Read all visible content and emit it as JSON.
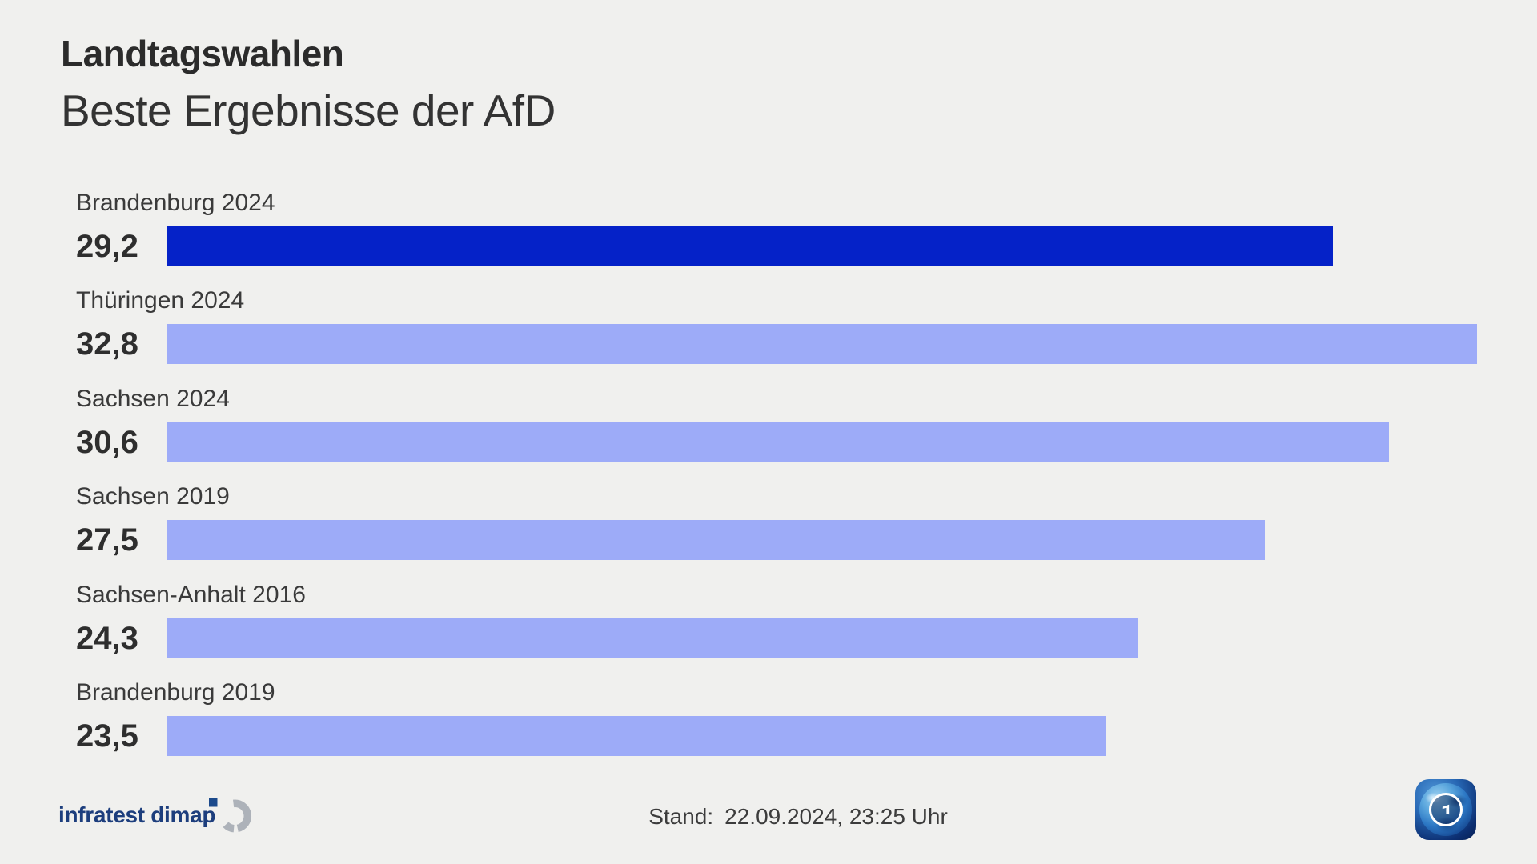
{
  "chart_data": {
    "type": "bar",
    "orientation": "horizontal",
    "kicker": "Landtagswahlen",
    "title": "Beste Ergebnisse der AfD",
    "categories": [
      "Brandenburg 2024",
      "Thüringen 2024",
      "Sachsen 2024",
      "Sachsen 2019",
      "Sachsen-Anhalt 2016",
      "Brandenburg 2019"
    ],
    "values": [
      29.2,
      32.8,
      30.6,
      27.5,
      24.3,
      23.5
    ],
    "value_labels": [
      "29,2",
      "32,8",
      "30,6",
      "27,5",
      "24,3",
      "23,5"
    ],
    "highlighted_index": 0,
    "colors": {
      "highlight": "#0522c8",
      "default": "#9dabf8"
    },
    "xlim": [
      0,
      32.8
    ],
    "grid": false,
    "legend": false
  },
  "footer": {
    "source": "infratest dimap",
    "stand_label": "Stand:",
    "stand_value": "22.09.2024, 23:25 Uhr",
    "icons": {
      "source_mark": "infratest-dimap-mark",
      "broadcaster_logo": "ard-globe-logo"
    },
    "logo_colors": {
      "source_blue": "#1d3e7d",
      "source_gray": "#adb2b9",
      "ard_blue": "#0c2f72"
    }
  },
  "background_color": "#f0f0ee"
}
